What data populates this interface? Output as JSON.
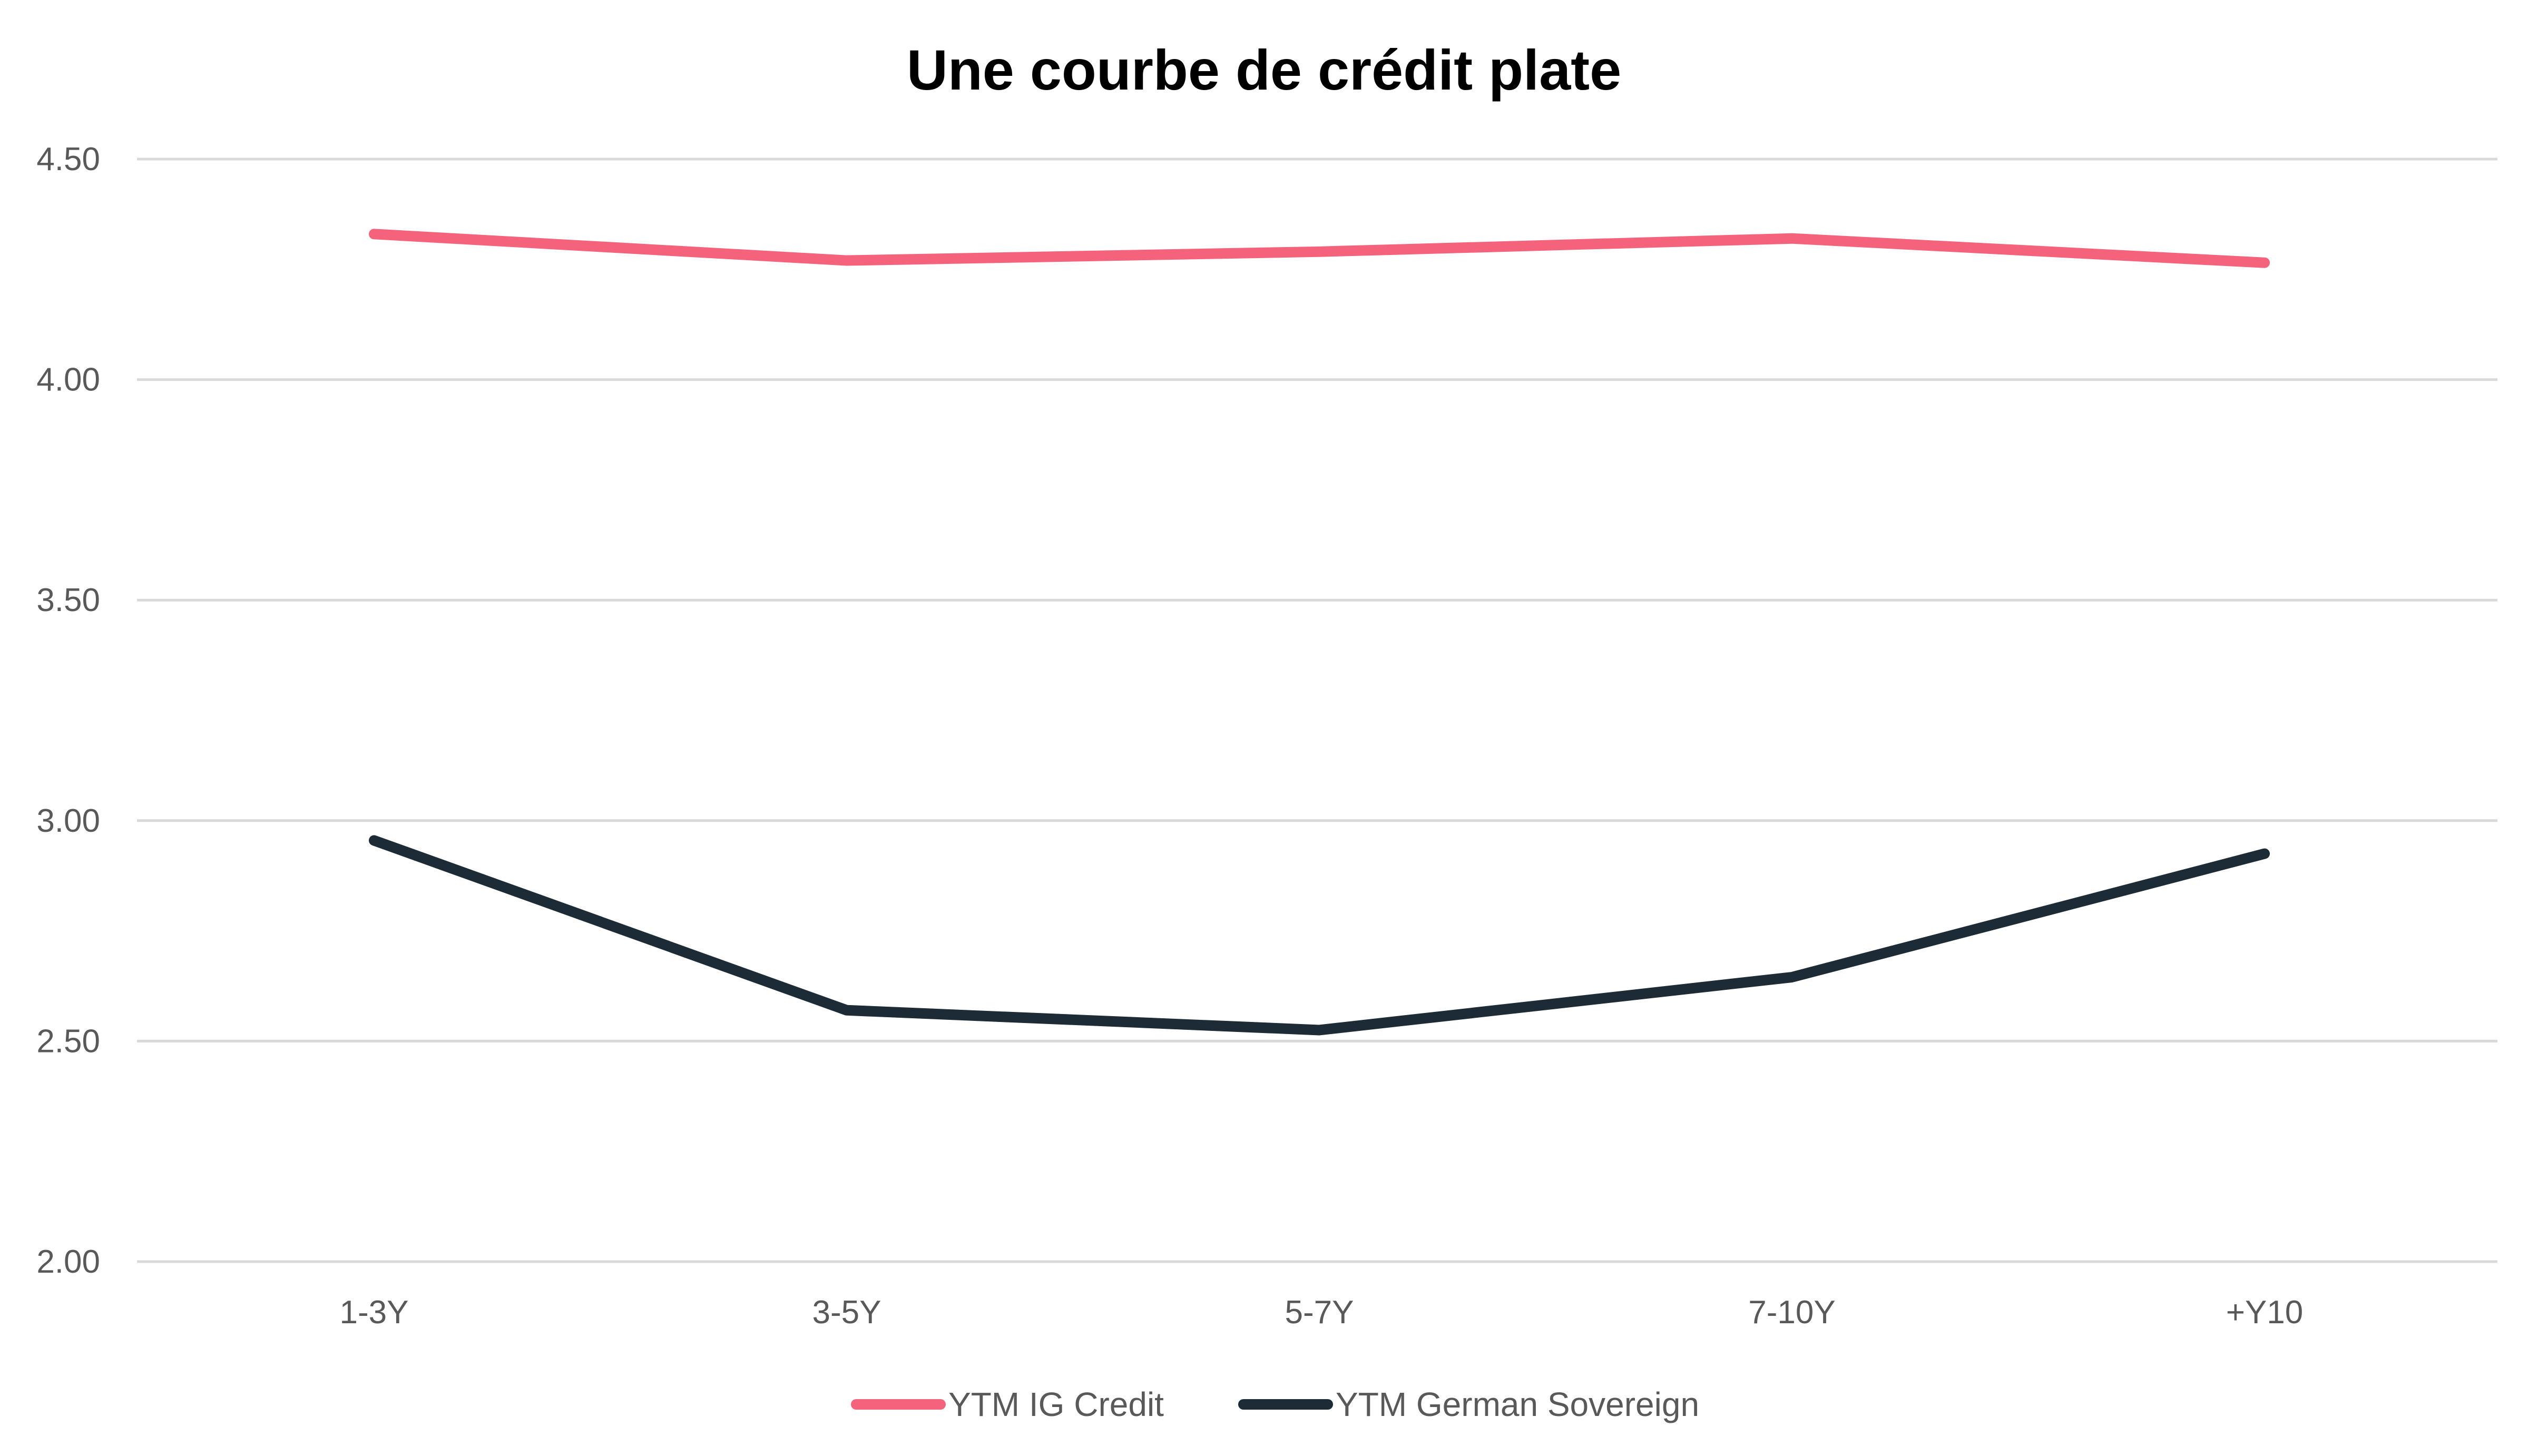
{
  "chart_data": {
    "type": "line",
    "title": "Une courbe de crédit plate",
    "xlabel": "",
    "ylabel": "",
    "categories": [
      "1-3Y",
      "3-5Y",
      "5-7Y",
      "7-10Y",
      "+Y10"
    ],
    "ylim": [
      2.0,
      4.5
    ],
    "yticks": [
      "2.00",
      "2.50",
      "3.00",
      "3.50",
      "4.00",
      "4.50"
    ],
    "grid": true,
    "legend_position": "bottom",
    "series": [
      {
        "name": "YTM IG Credit",
        "color": "#f4627c",
        "values": [
          4.33,
          4.27,
          4.29,
          4.32,
          4.265
        ]
      },
      {
        "name": "YTM German Sovereign",
        "color": "#1c2b35",
        "values": [
          2.955,
          2.57,
          2.525,
          2.645,
          2.925
        ]
      }
    ]
  }
}
